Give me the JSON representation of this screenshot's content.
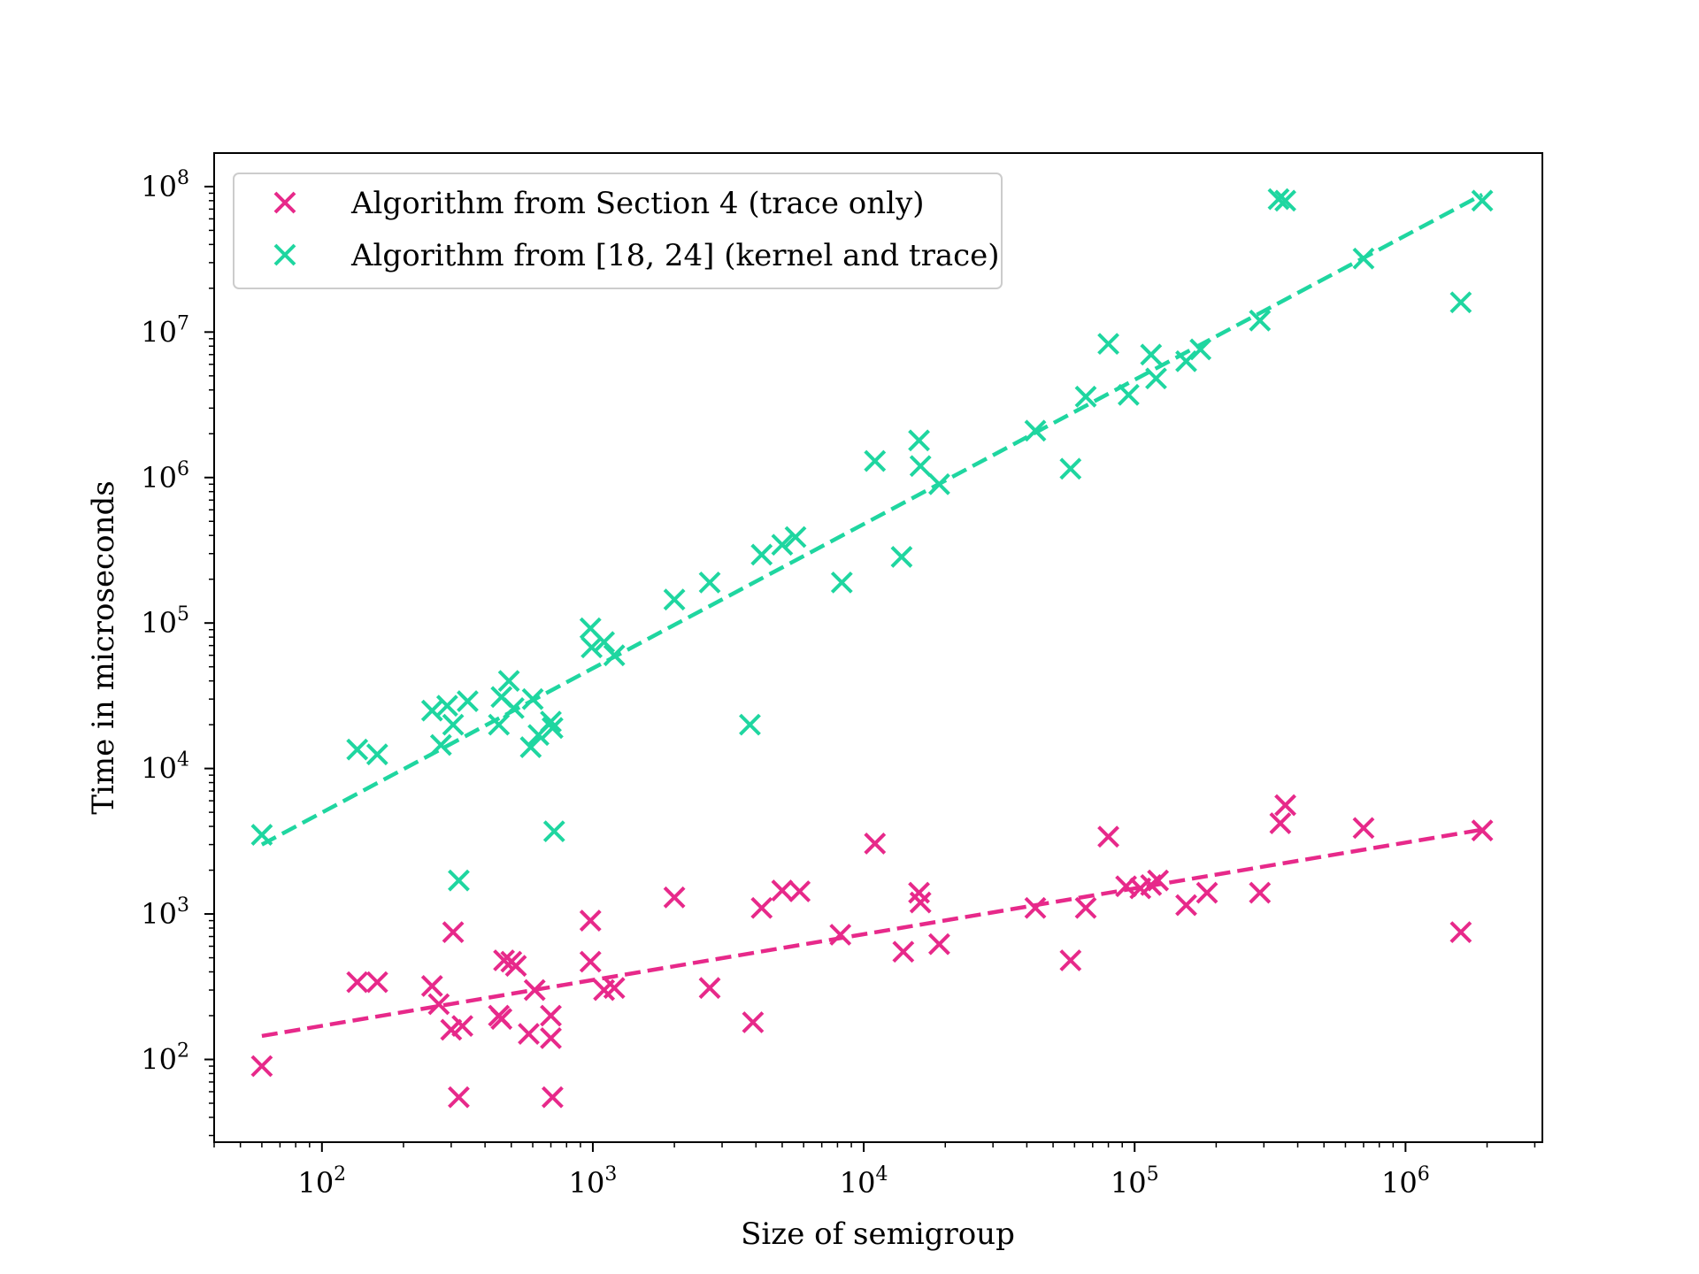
{
  "chart_data": {
    "type": "scatter",
    "title": "",
    "xlabel": "Size of semigroup",
    "ylabel": "Time in microseconds",
    "xscale": "log",
    "yscale": "log",
    "xlim": [
      40,
      3200000
    ],
    "ylim": [
      27,
      170000000
    ],
    "legend_position": "top-left",
    "grid": false,
    "x_major_ticks": [
      {
        "value": 100,
        "base": "10",
        "exp": "2"
      },
      {
        "value": 1000,
        "base": "10",
        "exp": "3"
      },
      {
        "value": 10000,
        "base": "10",
        "exp": "4"
      },
      {
        "value": 100000,
        "base": "10",
        "exp": "5"
      },
      {
        "value": 1000000,
        "base": "10",
        "exp": "6"
      }
    ],
    "y_major_ticks": [
      {
        "value": 100,
        "base": "10",
        "exp": "2"
      },
      {
        "value": 1000,
        "base": "10",
        "exp": "3"
      },
      {
        "value": 10000,
        "base": "10",
        "exp": "4"
      },
      {
        "value": 100000,
        "base": "10",
        "exp": "5"
      },
      {
        "value": 1000000,
        "base": "10",
        "exp": "6"
      },
      {
        "value": 10000000,
        "base": "10",
        "exp": "7"
      },
      {
        "value": 100000000,
        "base": "10",
        "exp": "8"
      }
    ],
    "series": [
      {
        "name": "Algorithm from Section 4 (trace only)",
        "color": "#e7298a",
        "marker": "x",
        "points": [
          [
            60,
            90
          ],
          [
            135,
            340
          ],
          [
            160,
            340
          ],
          [
            255,
            320
          ],
          [
            270,
            240
          ],
          [
            300,
            160
          ],
          [
            305,
            750
          ],
          [
            330,
            170
          ],
          [
            320,
            55
          ],
          [
            450,
            200
          ],
          [
            460,
            190
          ],
          [
            470,
            480
          ],
          [
            500,
            470
          ],
          [
            520,
            440
          ],
          [
            580,
            150
          ],
          [
            610,
            300
          ],
          [
            700,
            200
          ],
          [
            700,
            140
          ],
          [
            710,
            55
          ],
          [
            980,
            900
          ],
          [
            980,
            470
          ],
          [
            1100,
            300
          ],
          [
            1200,
            310
          ],
          [
            2000,
            1300
          ],
          [
            2700,
            310
          ],
          [
            3900,
            180
          ],
          [
            4200,
            1100
          ],
          [
            5000,
            1450
          ],
          [
            5800,
            1430
          ],
          [
            8200,
            720
          ],
          [
            11000,
            3050
          ],
          [
            14000,
            550
          ],
          [
            16000,
            1400
          ],
          [
            16200,
            1200
          ],
          [
            19000,
            620
          ],
          [
            43000,
            1100
          ],
          [
            58000,
            480
          ],
          [
            66000,
            1100
          ],
          [
            80000,
            3400
          ],
          [
            93000,
            1550
          ],
          [
            105000,
            1500
          ],
          [
            115000,
            1580
          ],
          [
            122000,
            1700
          ],
          [
            155000,
            1150
          ],
          [
            185000,
            1400
          ],
          [
            290000,
            1400
          ],
          [
            345000,
            4200
          ],
          [
            360000,
            5600
          ],
          [
            700000,
            3900
          ],
          [
            1600000,
            750
          ],
          [
            1920000,
            3750
          ]
        ],
        "fit": {
          "x": [
            60,
            1920000
          ],
          "y": [
            145,
            3800
          ]
        }
      },
      {
        "name": "Algorithm from [18, 24] (kernel and trace)",
        "color": "#1fd6a0",
        "marker": "x",
        "points": [
          [
            60,
            3500
          ],
          [
            135,
            13500
          ],
          [
            160,
            12500
          ],
          [
            255,
            25000
          ],
          [
            275,
            14500
          ],
          [
            290,
            27000
          ],
          [
            305,
            20000
          ],
          [
            320,
            1700
          ],
          [
            345,
            29000
          ],
          [
            450,
            20000
          ],
          [
            460,
            31000
          ],
          [
            490,
            40000
          ],
          [
            510,
            26000
          ],
          [
            590,
            14000
          ],
          [
            600,
            30000
          ],
          [
            630,
            17000
          ],
          [
            700,
            21000
          ],
          [
            710,
            19000
          ],
          [
            720,
            3700
          ],
          [
            980,
            92000
          ],
          [
            990,
            68000
          ],
          [
            1100,
            74000
          ],
          [
            1200,
            60000
          ],
          [
            2000,
            145000
          ],
          [
            2700,
            190000
          ],
          [
            3800,
            20000
          ],
          [
            4200,
            295000
          ],
          [
            5000,
            345000
          ],
          [
            5600,
            390000
          ],
          [
            8300,
            190000
          ],
          [
            11000,
            1300000
          ],
          [
            13800,
            285000
          ],
          [
            16000,
            1800000
          ],
          [
            16200,
            1200000
          ],
          [
            19000,
            900000
          ],
          [
            43000,
            2100000
          ],
          [
            58000,
            1150000
          ],
          [
            66000,
            3600000
          ],
          [
            80000,
            8300000
          ],
          [
            95000,
            3700000
          ],
          [
            115000,
            7000000
          ],
          [
            120000,
            4800000
          ],
          [
            155000,
            6300000
          ],
          [
            175000,
            7600000
          ],
          [
            290000,
            12000000
          ],
          [
            340000,
            82000000
          ],
          [
            360000,
            80000000
          ],
          [
            700000,
            32000000
          ],
          [
            1600000,
            16000000
          ],
          [
            1920000,
            80000000
          ]
        ],
        "fit": {
          "x": [
            60,
            1920000
          ],
          "y": [
            3000,
            88000000
          ]
        }
      }
    ]
  }
}
